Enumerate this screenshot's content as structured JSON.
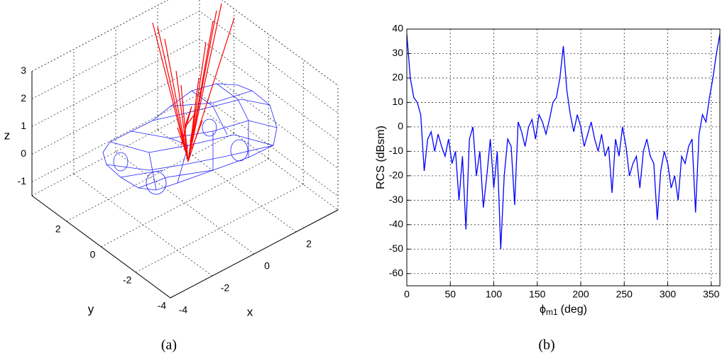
{
  "chart_data": [
    {
      "type": "wireframe3d",
      "caption": "(a)",
      "xlabel": "x",
      "ylabel": "y",
      "zlabel": "z",
      "xlim": [
        -4,
        4
      ],
      "ylim": [
        -4,
        4
      ],
      "zlim": [
        -1.5,
        3
      ],
      "xticks": [
        -4,
        -2,
        0,
        2
      ],
      "yticks": [
        -4,
        -2,
        0,
        2
      ],
      "zticks": [
        -1,
        0,
        1,
        2,
        3
      ],
      "grid": true
    },
    {
      "type": "line",
      "caption": "(b)",
      "ylabel": "RCS (dBsm)",
      "xlabel": "ϕ",
      "xlabel_sub": "m1",
      "xlabel_unit": "(deg)",
      "color": "#0000ff",
      "grid": true,
      "xlim": [
        0,
        360
      ],
      "ylim": [
        -65,
        40
      ],
      "xticks": [
        0,
        50,
        100,
        150,
        200,
        250,
        300,
        350
      ],
      "yticks": [
        -60,
        -50,
        -40,
        -30,
        -20,
        -10,
        0,
        10,
        20,
        30,
        40
      ],
      "x": [
        0,
        4,
        8,
        12,
        16,
        20,
        24,
        28,
        32,
        36,
        40,
        44,
        48,
        52,
        56,
        60,
        64,
        68,
        72,
        76,
        80,
        84,
        88,
        92,
        96,
        100,
        104,
        108,
        112,
        116,
        120,
        124,
        128,
        132,
        136,
        140,
        144,
        148,
        152,
        156,
        160,
        164,
        168,
        172,
        176,
        180,
        184,
        188,
        192,
        196,
        200,
        204,
        208,
        212,
        216,
        220,
        224,
        228,
        232,
        236,
        240,
        244,
        248,
        252,
        256,
        260,
        264,
        268,
        272,
        276,
        280,
        284,
        288,
        292,
        296,
        300,
        304,
        308,
        312,
        316,
        320,
        324,
        328,
        332,
        336,
        340,
        344,
        348,
        352,
        356,
        360
      ],
      "values": [
        38,
        20,
        12,
        10,
        5,
        -18,
        -5,
        -2,
        -10,
        -3,
        -8,
        -12,
        -5,
        -15,
        -10,
        -30,
        -12,
        -42,
        -5,
        0,
        -20,
        -10,
        -33,
        -20,
        -5,
        -25,
        -10,
        -50,
        -20,
        -5,
        -8,
        -32,
        2,
        -2,
        -8,
        0,
        3,
        -5,
        5,
        2,
        -3,
        3,
        10,
        12,
        20,
        33,
        15,
        5,
        -2,
        5,
        0,
        -8,
        -3,
        2,
        -5,
        -10,
        -3,
        -12,
        -8,
        -27,
        -5,
        -12,
        0,
        -8,
        -20,
        -15,
        -12,
        -25,
        -10,
        -5,
        -12,
        -15,
        -38,
        -18,
        -10,
        -15,
        -25,
        -20,
        -30,
        -12,
        -15,
        -8,
        -5,
        -35,
        -3,
        5,
        2,
        12,
        20,
        30,
        38
      ]
    }
  ]
}
